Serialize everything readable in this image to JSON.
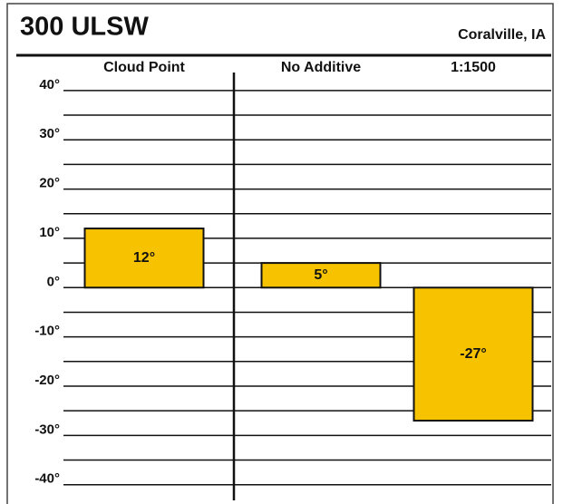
{
  "chart_data": {
    "type": "bar",
    "title": "300 ULSW",
    "subtitle": "Coralville, IA",
    "categories": [
      "Cloud Point",
      "No Additive",
      "1:1500"
    ],
    "values": [
      12,
      5,
      -27
    ],
    "value_labels": [
      "12°",
      "5°",
      "-27°"
    ],
    "color": "#f7c300",
    "ylim": [
      -43,
      42
    ],
    "yticks": [
      {
        "value": 40,
        "label": "40°"
      },
      {
        "value": 30,
        "label": "30°"
      },
      {
        "value": 20,
        "label": "20°"
      },
      {
        "value": 10,
        "label": "10°"
      },
      {
        "value": 0,
        "label": "0°"
      },
      {
        "value": -10,
        "label": "-10°"
      },
      {
        "value": -20,
        "label": "-20°"
      },
      {
        "value": -30,
        "label": "-30°"
      },
      {
        "value": -40,
        "label": "-40°"
      }
    ],
    "minor_yticks": [
      35,
      25,
      15,
      5,
      -5,
      -15,
      -25,
      -35
    ],
    "grid": true
  }
}
